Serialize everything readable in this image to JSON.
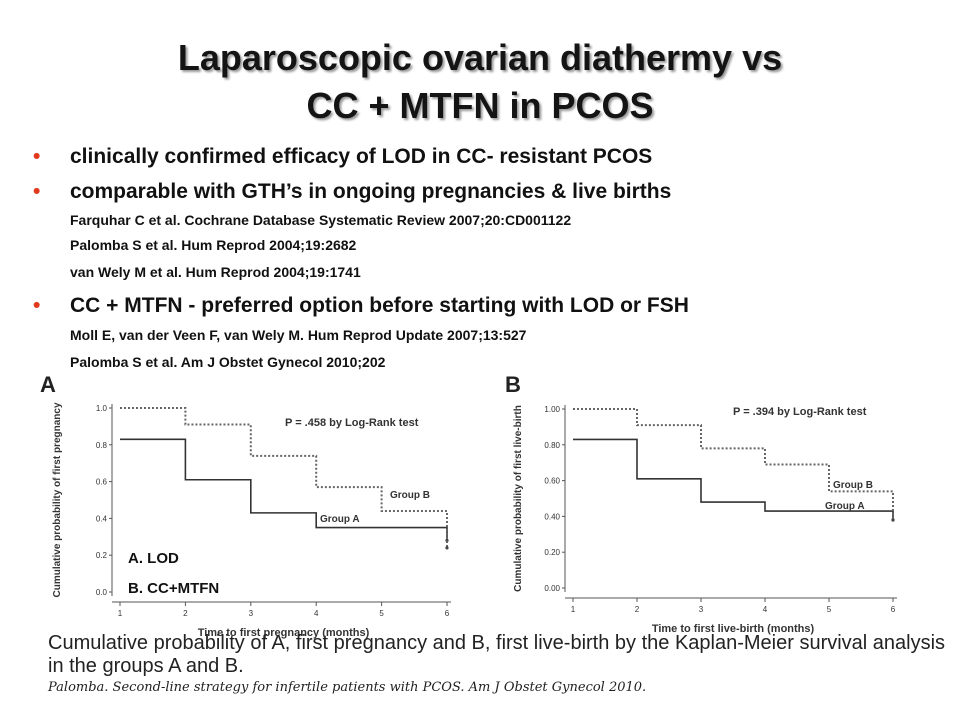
{
  "title": {
    "line1": "Laparoscopic ovarian diathermy vs",
    "line2": "CC + MTFN in PCOS"
  },
  "bullets": [
    {
      "text": "clinically confirmed efficacy of LOD in CC- resistant PCOS"
    },
    {
      "text": "comparable with GTH’s in ongoing pregnancies & live births",
      "refs": [
        "Farquhar C et al. Cochrane Database Systematic Review 2007;20:CD001122",
        "Palomba S et al. Hum Reprod 2004;19:2682",
        "van Wely M et al. Hum Reprod 2004;19:1741"
      ]
    },
    {
      "text": "CC + MTFN - preferred option before starting with LOD or FSH",
      "refs": [
        "Moll E, van der Veen F, van Wely M. Hum Reprod Update 2007;13:527",
        "Palomba S et al. Am J Obstet Gynecol 2010;202"
      ]
    }
  ],
  "bullet_color": "#e23a1d",
  "figure_legend": {
    "a": "A.  LOD",
    "b": "B.  CC+MTFN"
  },
  "caption": {
    "line1": "Cumulative probability of A, first pregnancy and B, first live-birth by the Kaplan-Meier survival analysis",
    "line2": "in the groups A and B.",
    "source": "Palomba. Second-line strategy for infertile patients with PCOS. Am J Obstet Gynecol 2010."
  },
  "chart_data": [
    {
      "type": "line",
      "panel_label": "A",
      "ylabel": "Cumulative probability of first pregnancy",
      "xlabel": "Time to first pregnancy (months)",
      "annotation": "P = .458 by Log-Rank test",
      "x_ticks": [
        "1",
        "2",
        "3",
        "4",
        "5",
        "6"
      ],
      "y_ticks": [
        "0.0",
        "0.2",
        "0.4",
        "0.6",
        "0.8",
        "1.0"
      ],
      "xlim": [
        1,
        6
      ],
      "ylim": [
        0,
        1.0
      ],
      "series": [
        {
          "name": "Group A",
          "style": "solid",
          "steps": [
            [
              1,
              0.83
            ],
            [
              2,
              0.61
            ],
            [
              3,
              0.43
            ],
            [
              4,
              0.35
            ],
            [
              6,
              0.28
            ]
          ]
        },
        {
          "name": "Group B",
          "style": "dotted",
          "steps": [
            [
              1,
              1.0
            ],
            [
              2,
              0.91
            ],
            [
              3,
              0.74
            ],
            [
              4,
              0.57
            ],
            [
              5,
              0.44
            ],
            [
              6,
              0.24
            ]
          ]
        }
      ]
    },
    {
      "type": "line",
      "panel_label": "B",
      "ylabel": "Cumulative probability of first live-birth",
      "xlabel": "Time to first live-birth (months)",
      "annotation": "P = .394 by Log-Rank test",
      "x_ticks": [
        "1",
        "2",
        "3",
        "4",
        "5",
        "6"
      ],
      "y_ticks": [
        "0.00",
        "0.20",
        "0.40",
        "0.60",
        "0.80",
        "1.00"
      ],
      "xlim": [
        1,
        6
      ],
      "ylim": [
        0,
        1.0
      ],
      "series": [
        {
          "name": "Group A",
          "style": "solid",
          "steps": [
            [
              1,
              0.83
            ],
            [
              2,
              0.61
            ],
            [
              3,
              0.48
            ],
            [
              4,
              0.43
            ],
            [
              6,
              0.38
            ]
          ]
        },
        {
          "name": "Group B",
          "style": "dotted",
          "steps": [
            [
              1,
              1.0
            ],
            [
              2,
              0.91
            ],
            [
              3,
              0.78
            ],
            [
              4,
              0.69
            ],
            [
              5,
              0.54
            ],
            [
              6,
              0.38
            ]
          ]
        }
      ]
    }
  ]
}
